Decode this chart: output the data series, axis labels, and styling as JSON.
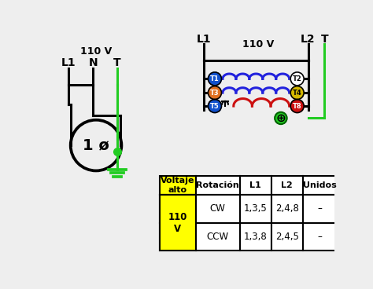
{
  "bg_color": "#eeeeee",
  "left_labels": {
    "voltage": "110 V",
    "L1": "L1",
    "N": "N",
    "T": "T",
    "phi": "1 ø"
  },
  "right_labels": {
    "L1": "L1",
    "L2": "L2",
    "T": "T",
    "voltage": "110 V"
  },
  "terminals": [
    {
      "name": "T1",
      "color": "#1050cc",
      "text_color": "white"
    },
    {
      "name": "T2",
      "color": "white",
      "text_color": "black"
    },
    {
      "name": "T3",
      "color": "#e07020",
      "text_color": "white"
    },
    {
      "name": "T4",
      "color": "#d4b800",
      "text_color": "black"
    },
    {
      "name": "T5",
      "color": "#1050cc",
      "text_color": "white"
    },
    {
      "name": "T8",
      "color": "#cc1010",
      "text_color": "white"
    }
  ],
  "coil_colors": {
    "top": "#2222dd",
    "mid": "#2222dd",
    "bot": "#cc1010"
  },
  "ground_color": "#22cc22",
  "table": {
    "header": [
      "Voltaje\nalto",
      "Rotación",
      "L1",
      "L2",
      "Unidos"
    ],
    "rows": [
      [
        "110\nV",
        "CW",
        "1,3,5",
        "2,4,8",
        "–"
      ],
      [
        "110\nV",
        "CCW",
        "1,3,8",
        "2,4,5",
        "–"
      ]
    ],
    "header_bg": "#ffffff",
    "voltaje_bg": "#ffff00",
    "row_bg": "#ffffff"
  }
}
